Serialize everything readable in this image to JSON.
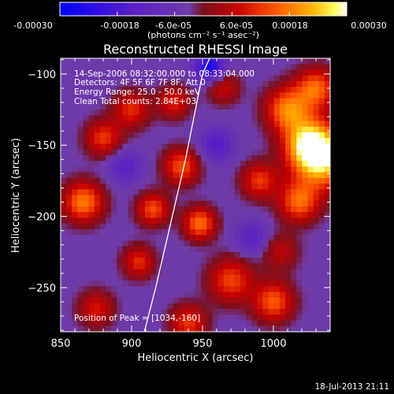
{
  "colorbar": {
    "tick_labels": [
      "-0.00030",
      "-0.00018",
      "-6.0e-05",
      "6.0e-05",
      "0.00018",
      "0.00030"
    ],
    "ticks": [
      -0.0003,
      -0.00018,
      -6e-05,
      6e-05,
      0.00018,
      0.0003
    ],
    "range": [
      -0.0003,
      0.0003
    ],
    "unit_label": "(photons cm⁻² s⁻¹ asec⁻²)"
  },
  "annotations": {
    "time_range": "14-Sep-2006 08:32:00.000 to 08:33:04.000",
    "detectors": "Detectors: 4F 5F 6F 7F 8F, Att 0",
    "energy_range": "Energy Range: 25.0 - 50.0 keV",
    "algorithm": "Clean    Total counts: 2.84E+03",
    "peak": "Position of Peak = [1034,-160]"
  },
  "footer": {
    "timestamp": "18-Jul-2013 21:11"
  },
  "colors": {
    "background": "#000000",
    "axes": "#ffffff",
    "limb": "#ffffff",
    "colormap": [
      "#0000ff",
      "#5a1ec8",
      "#6e3ca8",
      "#7a1020",
      "#c80000",
      "#ff5500",
      "#ffb400",
      "#ffff60",
      "#ffffff"
    ]
  },
  "chart_data": {
    "type": "heatmap",
    "title": "Reconstructed RHESSI Image",
    "xlabel": "Heliocentric X (arcsec)",
    "ylabel": "Heliocentric Y (arcsec)",
    "xlim": [
      850,
      1040
    ],
    "ylim": [
      -281,
      -89
    ],
    "x_ticks": [
      850,
      900,
      950,
      1000
    ],
    "y_ticks": [
      -100,
      -150,
      -200,
      -250
    ],
    "x_tick_labels": [
      "850",
      "900",
      "950",
      "1000"
    ],
    "y_tick_labels": [
      "−100",
      "−150",
      "−200",
      "−250"
    ],
    "limb_curve": {
      "x": [
        909,
        917,
        924,
        931,
        938,
        944,
        950,
        955,
        959
      ],
      "y": [
        -281,
        -250,
        -220,
        -190,
        -160,
        -130,
        -100,
        -89,
        -80
      ]
    },
    "sources": [
      {
        "x": 1034,
        "y": -160,
        "sigma": 14,
        "amplitude": 0.0003
      },
      {
        "x": 1025,
        "y": -148,
        "sigma": 12,
        "amplitude": 0.00024
      },
      {
        "x": 1010,
        "y": -125,
        "sigma": 11,
        "amplitude": 0.00022
      },
      {
        "x": 1030,
        "y": -110,
        "sigma": 10,
        "amplitude": 0.0002
      },
      {
        "x": 1018,
        "y": -190,
        "sigma": 10,
        "amplitude": 0.0002
      },
      {
        "x": 990,
        "y": -175,
        "sigma": 9,
        "amplitude": 0.00016
      },
      {
        "x": 948,
        "y": -205,
        "sigma": 8,
        "amplitude": 0.00021
      },
      {
        "x": 935,
        "y": -165,
        "sigma": 9,
        "amplitude": 0.00018
      },
      {
        "x": 915,
        "y": -195,
        "sigma": 8,
        "amplitude": 0.00018
      },
      {
        "x": 866,
        "y": -190,
        "sigma": 10,
        "amplitude": 0.00022
      },
      {
        "x": 880,
        "y": -145,
        "sigma": 9,
        "amplitude": 0.00016
      },
      {
        "x": 900,
        "y": -125,
        "sigma": 9,
        "amplitude": 0.00015
      },
      {
        "x": 930,
        "y": -120,
        "sigma": 8,
        "amplitude": 0.00014
      },
      {
        "x": 905,
        "y": -232,
        "sigma": 8,
        "amplitude": 0.00015
      },
      {
        "x": 970,
        "y": -245,
        "sigma": 11,
        "amplitude": 0.00017
      },
      {
        "x": 1000,
        "y": -260,
        "sigma": 10,
        "amplitude": 0.00019
      },
      {
        "x": 875,
        "y": -265,
        "sigma": 9,
        "amplitude": 0.00013
      },
      {
        "x": 940,
        "y": -275,
        "sigma": 9,
        "amplitude": 0.00016
      },
      {
        "x": 965,
        "y": -110,
        "sigma": 8,
        "amplitude": 0.00011
      },
      {
        "x": 960,
        "y": -150,
        "sigma": 8,
        "amplitude": -0.00012
      },
      {
        "x": 955,
        "y": -95,
        "sigma": 7,
        "amplitude": -0.00022
      },
      {
        "x": 985,
        "y": -215,
        "sigma": 8,
        "amplitude": -0.0001
      },
      {
        "x": 1005,
        "y": -225,
        "sigma": 9,
        "amplitude": 0.0001
      },
      {
        "x": 895,
        "y": -165,
        "sigma": 8,
        "amplitude": -0.0001
      }
    ]
  }
}
